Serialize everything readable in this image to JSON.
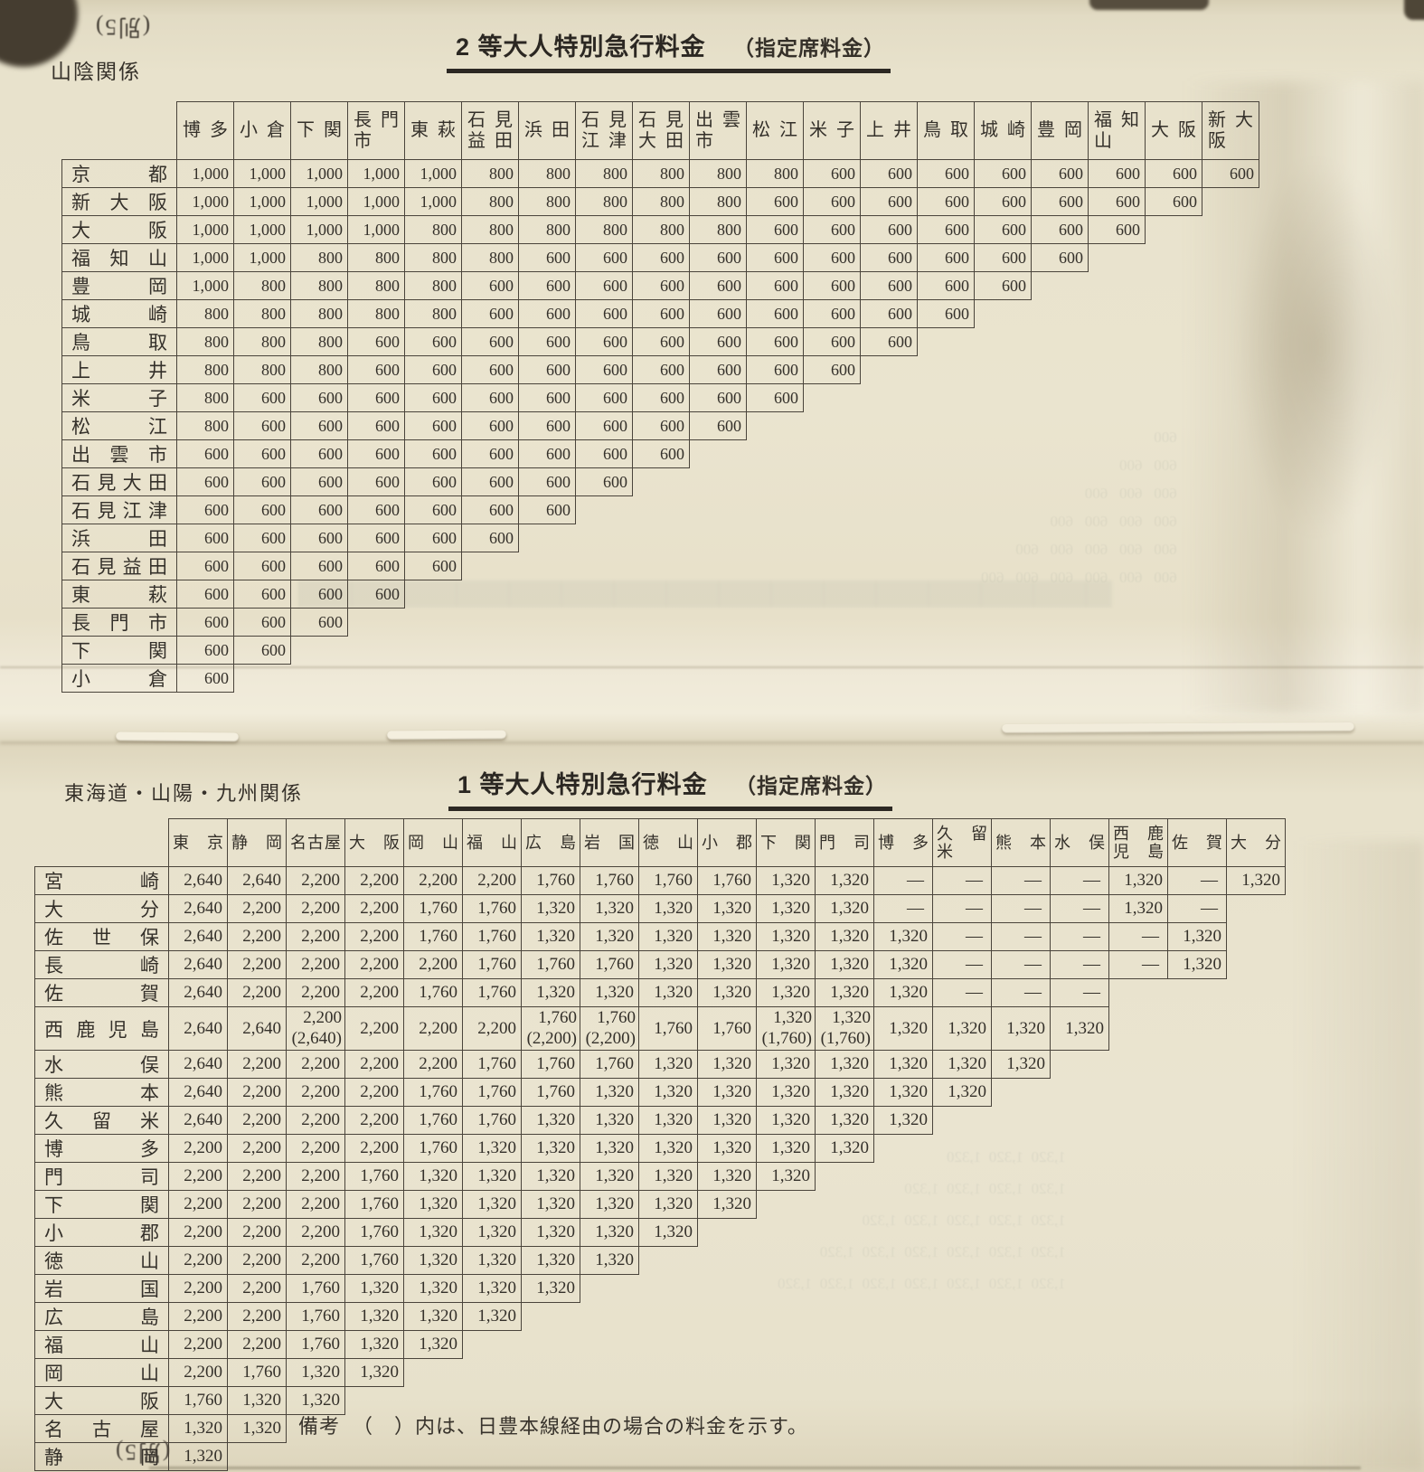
{
  "document": {
    "artifact_top": "(別5)",
    "artifact_bottom": "(別5)",
    "note": {
      "label": "備考",
      "text": "（　）内は、日豊本線経由の場合の料金を示す。"
    },
    "bleed_unit_top": "600",
    "bleed_unit_bottom": "1,320"
  },
  "tables": [
    {
      "id": "t2",
      "region": "山陰関係",
      "title": "2 等大人特別急行料金",
      "title_suffix": "（指定席料金）",
      "columns": [
        "博多",
        "小倉",
        "下関",
        "長門\n市",
        "東萩",
        "石見\n益田",
        "浜田",
        "石見\n江津",
        "石見\n大田",
        "出雲\n市",
        "松江",
        "米子",
        "上井",
        "鳥取",
        "城崎",
        "豊岡",
        "福知\n山",
        "大阪",
        "新大\n阪"
      ],
      "rows": [
        {
          "label": "京都",
          "values": [
            "1,000",
            "1,000",
            "1,000",
            "1,000",
            "1,000",
            "800",
            "800",
            "800",
            "800",
            "800",
            "800",
            "600",
            "600",
            "600",
            "600",
            "600",
            "600",
            "600",
            "600"
          ]
        },
        {
          "label": "新大阪",
          "values": [
            "1,000",
            "1,000",
            "1,000",
            "1,000",
            "1,000",
            "800",
            "800",
            "800",
            "800",
            "800",
            "600",
            "600",
            "600",
            "600",
            "600",
            "600",
            "600",
            "600"
          ]
        },
        {
          "label": "大阪",
          "values": [
            "1,000",
            "1,000",
            "1,000",
            "1,000",
            "800",
            "800",
            "800",
            "800",
            "800",
            "800",
            "600",
            "600",
            "600",
            "600",
            "600",
            "600",
            "600"
          ]
        },
        {
          "label": "福知山",
          "values": [
            "1,000",
            "1,000",
            "800",
            "800",
            "800",
            "800",
            "600",
            "600",
            "600",
            "600",
            "600",
            "600",
            "600",
            "600",
            "600",
            "600"
          ]
        },
        {
          "label": "豊岡",
          "values": [
            "1,000",
            "800",
            "800",
            "800",
            "800",
            "600",
            "600",
            "600",
            "600",
            "600",
            "600",
            "600",
            "600",
            "600",
            "600"
          ]
        },
        {
          "label": "城崎",
          "values": [
            "800",
            "800",
            "800",
            "800",
            "800",
            "600",
            "600",
            "600",
            "600",
            "600",
            "600",
            "600",
            "600",
            "600"
          ]
        },
        {
          "label": "鳥取",
          "values": [
            "800",
            "800",
            "800",
            "600",
            "600",
            "600",
            "600",
            "600",
            "600",
            "600",
            "600",
            "600",
            "600"
          ]
        },
        {
          "label": "上井",
          "values": [
            "800",
            "800",
            "800",
            "600",
            "600",
            "600",
            "600",
            "600",
            "600",
            "600",
            "600",
            "600"
          ]
        },
        {
          "label": "米子",
          "values": [
            "800",
            "600",
            "600",
            "600",
            "600",
            "600",
            "600",
            "600",
            "600",
            "600",
            "600"
          ]
        },
        {
          "label": "松江",
          "values": [
            "800",
            "600",
            "600",
            "600",
            "600",
            "600",
            "600",
            "600",
            "600",
            "600"
          ]
        },
        {
          "label": "出雲市",
          "values": [
            "600",
            "600",
            "600",
            "600",
            "600",
            "600",
            "600",
            "600",
            "600"
          ]
        },
        {
          "label": "石見大田",
          "values": [
            "600",
            "600",
            "600",
            "600",
            "600",
            "600",
            "600",
            "600"
          ]
        },
        {
          "label": "石見江津",
          "values": [
            "600",
            "600",
            "600",
            "600",
            "600",
            "600",
            "600"
          ]
        },
        {
          "label": "浜田",
          "values": [
            "600",
            "600",
            "600",
            "600",
            "600",
            "600"
          ]
        },
        {
          "label": "石見益田",
          "values": [
            "600",
            "600",
            "600",
            "600",
            "600"
          ]
        },
        {
          "label": "東萩",
          "values": [
            "600",
            "600",
            "600",
            "600"
          ]
        },
        {
          "label": "長門市",
          "values": [
            "600",
            "600",
            "600"
          ]
        },
        {
          "label": "下関",
          "values": [
            "600",
            "600"
          ]
        },
        {
          "label": "小倉",
          "values": [
            "600"
          ]
        }
      ]
    },
    {
      "id": "t1",
      "region": "東海道・山陽・九州関係",
      "title": "1 等大人特別急行料金",
      "title_suffix": "（指定席料金）",
      "columns": [
        "東京",
        "静岡",
        "名古屋",
        "大阪",
        "岡山",
        "福山",
        "広島",
        "岩国",
        "徳山",
        "小郡",
        "下関",
        "門司",
        "博多",
        "久留\n米",
        "熊本",
        "水俣",
        "西鹿\n児島",
        "佐賀",
        "大分"
      ],
      "rows": [
        {
          "label": "宮崎",
          "values": [
            "2,640",
            "2,640",
            "2,200",
            "2,200",
            "2,200",
            "2,200",
            "1,760",
            "1,760",
            "1,760",
            "1,760",
            "1,320",
            "1,320",
            "―",
            "―",
            "―",
            "―",
            "1,320",
            "―",
            "1,320"
          ]
        },
        {
          "label": "大分",
          "values": [
            "2,640",
            "2,200",
            "2,200",
            "2,200",
            "1,760",
            "1,760",
            "1,320",
            "1,320",
            "1,320",
            "1,320",
            "1,320",
            "1,320",
            "―",
            "―",
            "―",
            "―",
            "1,320",
            "―"
          ]
        },
        {
          "label": "佐世保",
          "values": [
            "2,640",
            "2,200",
            "2,200",
            "2,200",
            "1,760",
            "1,760",
            "1,320",
            "1,320",
            "1,320",
            "1,320",
            "1,320",
            "1,320",
            "1,320",
            "―",
            "―",
            "―",
            "―",
            "1,320"
          ]
        },
        {
          "label": "長崎",
          "values": [
            "2,640",
            "2,200",
            "2,200",
            "2,200",
            "2,200",
            "1,760",
            "1,760",
            "1,760",
            "1,320",
            "1,320",
            "1,320",
            "1,320",
            "1,320",
            "―",
            "―",
            "―",
            "―",
            "1,320"
          ]
        },
        {
          "label": "佐賀",
          "values": [
            "2,640",
            "2,200",
            "2,200",
            "2,200",
            "1,760",
            "1,760",
            "1,320",
            "1,320",
            "1,320",
            "1,320",
            "1,320",
            "1,320",
            "1,320",
            "―",
            "―",
            "―"
          ]
        },
        {
          "label": "西鹿児島",
          "values": [
            "2,640",
            "2,640",
            "2,200\n(2,640)",
            "2,200",
            "2,200",
            "2,200",
            "1,760\n(2,200)",
            "1,760\n(2,200)",
            "1,760",
            "1,760",
            "1,320\n(1,760)",
            "1,320\n(1,760)",
            "1,320",
            "1,320",
            "1,320",
            "1,320"
          ]
        },
        {
          "label": "水俣",
          "values": [
            "2,640",
            "2,200",
            "2,200",
            "2,200",
            "2,200",
            "1,760",
            "1,760",
            "1,760",
            "1,320",
            "1,320",
            "1,320",
            "1,320",
            "1,320",
            "1,320",
            "1,320"
          ]
        },
        {
          "label": "熊本",
          "values": [
            "2,640",
            "2,200",
            "2,200",
            "2,200",
            "1,760",
            "1,760",
            "1,760",
            "1,320",
            "1,320",
            "1,320",
            "1,320",
            "1,320",
            "1,320",
            "1,320"
          ]
        },
        {
          "label": "久留米",
          "values": [
            "2,640",
            "2,200",
            "2,200",
            "2,200",
            "1,760",
            "1,760",
            "1,320",
            "1,320",
            "1,320",
            "1,320",
            "1,320",
            "1,320",
            "1,320"
          ]
        },
        {
          "label": "博多",
          "values": [
            "2,200",
            "2,200",
            "2,200",
            "2,200",
            "1,760",
            "1,320",
            "1,320",
            "1,320",
            "1,320",
            "1,320",
            "1,320",
            "1,320"
          ]
        },
        {
          "label": "門司",
          "values": [
            "2,200",
            "2,200",
            "2,200",
            "1,760",
            "1,320",
            "1,320",
            "1,320",
            "1,320",
            "1,320",
            "1,320",
            "1,320"
          ]
        },
        {
          "label": "下関",
          "values": [
            "2,200",
            "2,200",
            "2,200",
            "1,760",
            "1,320",
            "1,320",
            "1,320",
            "1,320",
            "1,320",
            "1,320"
          ]
        },
        {
          "label": "小郡",
          "values": [
            "2,200",
            "2,200",
            "2,200",
            "1,760",
            "1,320",
            "1,320",
            "1,320",
            "1,320",
            "1,320"
          ]
        },
        {
          "label": "徳山",
          "values": [
            "2,200",
            "2,200",
            "2,200",
            "1,760",
            "1,320",
            "1,320",
            "1,320",
            "1,320"
          ]
        },
        {
          "label": "岩国",
          "values": [
            "2,200",
            "2,200",
            "1,760",
            "1,320",
            "1,320",
            "1,320",
            "1,320"
          ]
        },
        {
          "label": "広島",
          "values": [
            "2,200",
            "2,200",
            "1,760",
            "1,320",
            "1,320",
            "1,320"
          ]
        },
        {
          "label": "福山",
          "values": [
            "2,200",
            "2,200",
            "1,760",
            "1,320",
            "1,320"
          ]
        },
        {
          "label": "岡山",
          "values": [
            "2,200",
            "1,760",
            "1,320",
            "1,320"
          ]
        },
        {
          "label": "大阪",
          "values": [
            "1,760",
            "1,320",
            "1,320"
          ]
        },
        {
          "label": "名古屋",
          "values": [
            "1,320",
            "1,320"
          ]
        },
        {
          "label": "静岡",
          "values": [
            "1,320"
          ]
        }
      ]
    }
  ]
}
